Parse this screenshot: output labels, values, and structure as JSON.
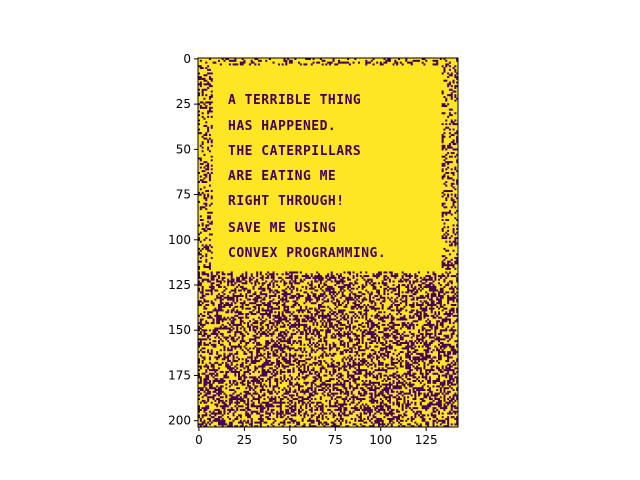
{
  "chart_data": {
    "type": "heatmap",
    "title": "",
    "xlabel": "",
    "ylabel": "",
    "cols": 143,
    "rows": 204,
    "xlim": [
      -0.5,
      142.5
    ],
    "ylim": [
      203.5,
      -0.5
    ],
    "x_ticks": [
      0,
      25,
      50,
      75,
      100,
      125
    ],
    "y_ticks": [
      0,
      25,
      50,
      75,
      100,
      125,
      150,
      175,
      200
    ],
    "colors": {
      "low": "#440154",
      "high": "#fde725"
    },
    "message_lines": [
      "A TERRIBLE THING",
      "HAS HAPPENED.",
      "THE CATERPILLARS",
      "ARE EATING ME",
      "RIGHT THROUGH!",
      "SAVE ME USING",
      "CONVEX PROGRAMMING."
    ]
  }
}
